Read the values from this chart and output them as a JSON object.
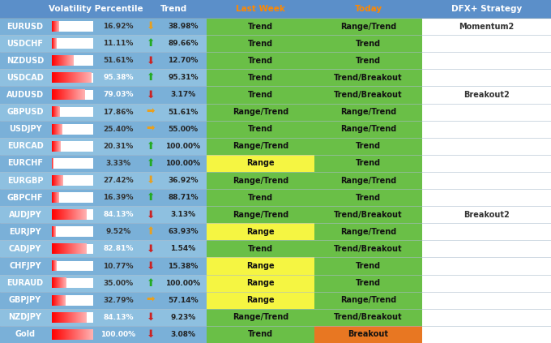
{
  "pairs": [
    "EURUSD",
    "USDCHF",
    "NZDUSD",
    "USDCAD",
    "AUDUSD",
    "GBPUSD",
    "USDJPY",
    "EURCAD",
    "EURCHF",
    "EURGBP",
    "GBPCHF",
    "AUDJPY",
    "EURJPY",
    "CADJPY",
    "CHFJPY",
    "EURAUD",
    "GBPJPY",
    "NZDJPY",
    "Gold"
  ],
  "vol_pct": [
    16.92,
    11.11,
    51.61,
    95.38,
    79.03,
    17.86,
    25.4,
    20.31,
    3.33,
    27.42,
    16.39,
    84.13,
    9.52,
    82.81,
    10.77,
    35.0,
    32.79,
    84.13,
    100.0
  ],
  "trend_pct": [
    38.98,
    89.66,
    12.7,
    95.31,
    3.17,
    51.61,
    55.0,
    100.0,
    100.0,
    36.92,
    88.71,
    3.13,
    63.93,
    1.54,
    15.38,
    100.0,
    57.14,
    9.23,
    3.08
  ],
  "trend_arrow": [
    "down_orange",
    "up_green",
    "down_red",
    "up_green",
    "down_red",
    "right_orange",
    "right_orange",
    "up_green",
    "up_green",
    "down_orange",
    "up_green",
    "down_red",
    "up_orange",
    "down_red",
    "down_red",
    "up_green",
    "right_orange",
    "down_red",
    "down_red"
  ],
  "last_week": [
    "Trend",
    "Trend",
    "Trend",
    "Trend",
    "Trend",
    "Range/Trend",
    "Trend",
    "Range/Trend",
    "Range",
    "Range/Trend",
    "Trend",
    "Range/Trend",
    "Range",
    "Trend",
    "Range",
    "Range",
    "Range",
    "Range/Trend",
    "Trend"
  ],
  "today": [
    "Range/Trend",
    "Trend",
    "Trend",
    "Trend/Breakout",
    "Trend/Breakout",
    "Range/Trend",
    "Range/Trend",
    "Trend",
    "Trend",
    "Range/Trend",
    "Trend",
    "Trend/Breakout",
    "Range/Trend",
    "Trend/Breakout",
    "Trend",
    "Trend",
    "Range/Trend",
    "Trend/Breakout",
    "Breakout"
  ],
  "dfx_strategy": [
    "Momentum2",
    "",
    "",
    "",
    "Breakout2",
    "",
    "",
    "",
    "",
    "",
    "",
    "Breakout2",
    "",
    "",
    "",
    "",
    "",
    "",
    ""
  ],
  "last_week_bg": {
    "Trend": "#6abf47",
    "Range/Trend": "#6abf47",
    "Range": "#f5f542"
  },
  "today_bg": {
    "Trend": "#6abf47",
    "Range/Trend": "#6abf47",
    "Trend/Breakout": "#6abf47",
    "Breakout": "#e87722"
  },
  "header_bg": "#5b8fc9",
  "row_bg_a": "#7ab0d8",
  "row_bg_b": "#8ec0e0",
  "pair_text_color": "#ffffff",
  "vol_text_color": "#222222",
  "trend_text_color": "#222222",
  "dfx_text_color": "#333333",
  "cell_text_color": "#111111",
  "arrow_colors": {
    "down_orange": "#e8a020",
    "up_green": "#22aa22",
    "down_red": "#cc2222",
    "right_orange": "#e8a020",
    "up_orange": "#e8a020"
  },
  "arrow_symbols": {
    "down_orange": "⬇",
    "up_green": "⬆",
    "down_red": "⬇",
    "right_orange": "➡",
    "up_orange": "⬆"
  }
}
